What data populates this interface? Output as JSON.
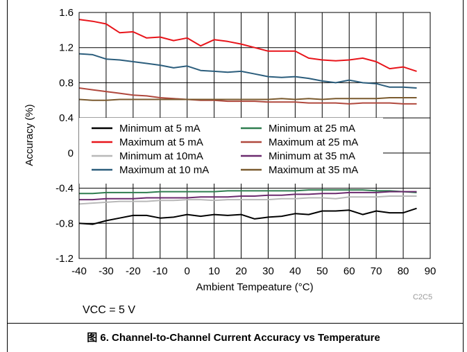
{
  "chart_data": {
    "type": "line",
    "title": "",
    "xlabel": "Ambient Tempeature (°C)",
    "ylabel": "Accuracy (%)",
    "xlim": [
      -40,
      90
    ],
    "ylim": [
      -1.2,
      1.6
    ],
    "xticks": [
      -40,
      -30,
      -20,
      -10,
      0,
      10,
      20,
      30,
      40,
      50,
      60,
      70,
      80,
      90
    ],
    "yticks": [
      -1.2,
      -0.8,
      -0.4,
      0,
      0.4,
      0.8,
      1.2,
      1.6
    ],
    "xtick_labels": [
      "-40",
      "-30",
      "-20",
      "-10",
      "0",
      "10",
      "20",
      "30",
      "40",
      "50",
      "60",
      "70",
      "80",
      "90"
    ],
    "ytick_labels": [
      "-1.2",
      "-0.8",
      "-0.4",
      "0",
      "0.4",
      "0.8",
      "1.2",
      "1.6"
    ],
    "grid": true,
    "legend_position": "center-left",
    "plot_code": "C2C5",
    "x": [
      -40,
      -35,
      -30,
      -25,
      -20,
      -15,
      -10,
      -5,
      0,
      5,
      10,
      15,
      20,
      25,
      30,
      35,
      40,
      45,
      50,
      55,
      60,
      65,
      70,
      75,
      80,
      85
    ],
    "series": [
      {
        "name": "Minimum at 5 mA",
        "color": "#000000",
        "values": [
          -0.8,
          -0.81,
          -0.77,
          -0.74,
          -0.71,
          -0.71,
          -0.74,
          -0.73,
          -0.7,
          -0.72,
          -0.7,
          -0.71,
          -0.7,
          -0.75,
          -0.73,
          -0.72,
          -0.69,
          -0.7,
          -0.66,
          -0.66,
          -0.65,
          -0.7,
          -0.66,
          -0.68,
          -0.68,
          -0.63
        ]
      },
      {
        "name": "Maximum at 5 mA",
        "color": "#e8141a",
        "values": [
          1.52,
          1.5,
          1.47,
          1.37,
          1.38,
          1.31,
          1.32,
          1.28,
          1.31,
          1.22,
          1.29,
          1.27,
          1.24,
          1.2,
          1.16,
          1.16,
          1.16,
          1.08,
          1.06,
          1.05,
          1.06,
          1.08,
          1.04,
          0.96,
          0.98,
          0.93
        ]
      },
      {
        "name": "Minimum at 10mA",
        "color": "#b8b8b8",
        "values": [
          -0.58,
          -0.57,
          -0.56,
          -0.55,
          -0.55,
          -0.55,
          -0.54,
          -0.54,
          -0.53,
          -0.53,
          -0.54,
          -0.53,
          -0.53,
          -0.53,
          -0.53,
          -0.52,
          -0.52,
          -0.51,
          -0.51,
          -0.52,
          -0.5,
          -0.5,
          -0.5,
          -0.49,
          -0.49,
          -0.49
        ]
      },
      {
        "name": "Maximum at 10 mA",
        "color": "#2b5d7c",
        "values": [
          1.13,
          1.12,
          1.07,
          1.06,
          1.04,
          1.02,
          1.0,
          0.97,
          0.99,
          0.94,
          0.93,
          0.92,
          0.93,
          0.9,
          0.87,
          0.86,
          0.87,
          0.85,
          0.82,
          0.8,
          0.83,
          0.8,
          0.79,
          0.75,
          0.75,
          0.74
        ]
      },
      {
        "name": "Minimum at 25 mA",
        "color": "#2e7d4f",
        "values": [
          -0.46,
          -0.46,
          -0.45,
          -0.45,
          -0.45,
          -0.45,
          -0.44,
          -0.44,
          -0.44,
          -0.44,
          -0.44,
          -0.43,
          -0.43,
          -0.43,
          -0.43,
          -0.43,
          -0.43,
          -0.42,
          -0.42,
          -0.42,
          -0.42,
          -0.42,
          -0.43,
          -0.43,
          -0.44,
          -0.45
        ]
      },
      {
        "name": "Maximum at 25 mA",
        "color": "#b0483d",
        "values": [
          0.74,
          0.72,
          0.7,
          0.68,
          0.66,
          0.65,
          0.63,
          0.62,
          0.61,
          0.6,
          0.6,
          0.59,
          0.59,
          0.59,
          0.58,
          0.58,
          0.58,
          0.57,
          0.57,
          0.57,
          0.56,
          0.57,
          0.57,
          0.57,
          0.56,
          0.56
        ]
      },
      {
        "name": "Minimum at 35 mA",
        "color": "#6b2a6e",
        "values": [
          -0.53,
          -0.53,
          -0.52,
          -0.52,
          -0.52,
          -0.51,
          -0.51,
          -0.51,
          -0.51,
          -0.5,
          -0.5,
          -0.5,
          -0.49,
          -0.49,
          -0.48,
          -0.48,
          -0.47,
          -0.47,
          -0.46,
          -0.46,
          -0.45,
          -0.45,
          -0.45,
          -0.44,
          -0.44,
          -0.44
        ]
      },
      {
        "name": "Maximum at 35 mA",
        "color": "#7a5a2e",
        "values": [
          0.61,
          0.6,
          0.6,
          0.61,
          0.61,
          0.61,
          0.61,
          0.61,
          0.61,
          0.61,
          0.61,
          0.61,
          0.61,
          0.61,
          0.61,
          0.62,
          0.61,
          0.62,
          0.61,
          0.62,
          0.62,
          0.62,
          0.62,
          0.63,
          0.63,
          0.63
        ]
      }
    ],
    "legend_order": [
      0,
      4,
      1,
      5,
      2,
      6,
      3,
      7
    ]
  },
  "annotations": {
    "condition": "VCC = 5 V"
  },
  "caption": {
    "figure_number": "图 6.",
    "text": "Channel-to-Channel Current Accuracy vs Temperature"
  }
}
